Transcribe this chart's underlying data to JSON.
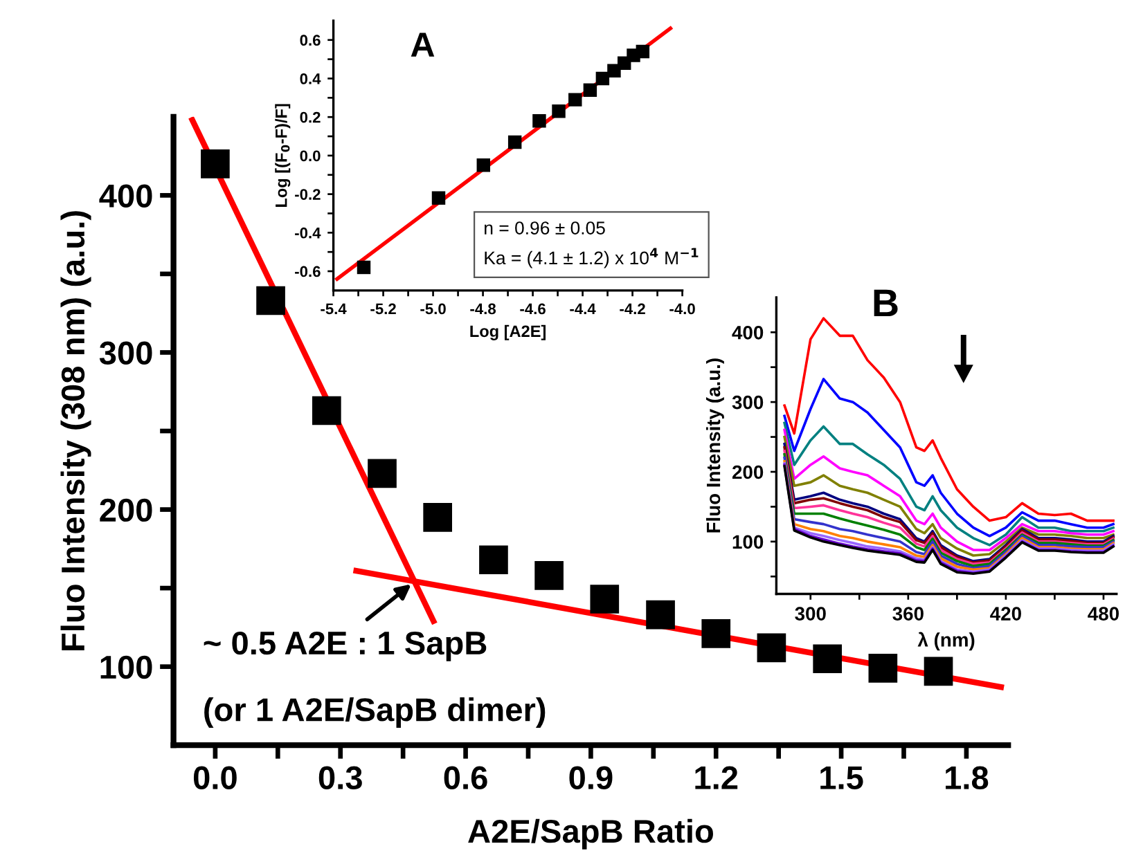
{
  "chart_data": [
    {
      "type": "scatter",
      "xlabel": "A2E/SapB Ratio",
      "ylabel": "Fluo Intensity (308 nm) (a.u.)",
      "xlim": [
        -0.1,
        1.9
      ],
      "ylim": [
        50,
        450
      ],
      "xticks": [
        {
          "value": 0,
          "label": "0.0"
        },
        {
          "value": 0.15,
          "label": null
        },
        0.3,
        {
          "value": 0.45,
          "label": null
        },
        0.6,
        {
          "value": 0.75,
          "label": null
        },
        0.9,
        {
          "value": 1.05,
          "label": null
        },
        1.2,
        {
          "value": 1.35,
          "label": null
        },
        1.5,
        {
          "value": 1.65,
          "label": null
        },
        1.8
      ],
      "yticks": [
        100,
        {
          "value": 150,
          "label": null
        },
        200,
        {
          "value": 250,
          "label": null
        },
        300,
        {
          "value": 350,
          "label": null
        },
        400
      ],
      "grid": false,
      "legend": false,
      "series": [
        {
          "type": "scatter",
          "marker": "square",
          "color": "#000000",
          "x": [
            0.0,
            0.133,
            0.267,
            0.4,
            0.533,
            0.667,
            0.8,
            0.933,
            1.067,
            1.2,
            1.333,
            1.467,
            1.6,
            1.733
          ],
          "values": [
            420,
            333,
            263,
            223,
            195,
            168,
            158,
            143,
            133,
            121,
            112,
            105,
            99,
            97
          ]
        },
        {
          "type": "line",
          "line_style": "solid",
          "color": "#ff0000",
          "x": [
            -0.055,
            0.523
          ],
          "values": [
            448,
            129
          ]
        },
        {
          "type": "line",
          "line_style": "solid",
          "color": "#ff0000",
          "x": [
            0.338,
            1.883
          ],
          "values": [
            161,
            87
          ]
        }
      ],
      "annotations": [
        {
          "text": "~ 0.5 A2E : 1 SapB",
          "x": 0.477,
          "y": 154
        },
        "(or 1 A2E/SapB dimer)"
      ]
    },
    {
      "type": "scatter",
      "title": "A",
      "xlabel": "Log [A2E]",
      "ylabel": "Log [(F$_{0}$-F)/F]",
      "xlim": [
        -5.4,
        -4.0
      ],
      "ylim": [
        -0.7,
        0.7
      ],
      "xticks": [
        -5.4,
        {
          "value": -5.3,
          "label": null
        },
        -5.2,
        {
          "value": -5.1,
          "label": null
        },
        {
          "value": -5,
          "label": "-5.0"
        },
        {
          "value": -4.9,
          "label": null
        },
        -4.8,
        {
          "value": -4.7,
          "label": null
        },
        -4.6,
        {
          "value": -4.5,
          "label": null
        },
        -4.4,
        {
          "value": -4.3,
          "label": null
        },
        -4.2,
        {
          "value": -4.1,
          "label": null
        },
        {
          "value": -4,
          "label": "-4.0"
        }
      ],
      "yticks": [
        -0.6,
        {
          "value": -0.5,
          "label": null
        },
        -0.4,
        {
          "value": -0.3,
          "label": null
        },
        -0.2,
        {
          "value": -0.1,
          "label": null
        },
        {
          "value": 0,
          "label": "0.0"
        },
        {
          "value": 0.1,
          "label": null
        },
        0.2,
        {
          "value": 0.3,
          "label": null
        },
        0.4,
        {
          "value": 0.5,
          "label": null
        },
        0.6
      ],
      "grid": false,
      "legend": false,
      "series": [
        {
          "type": "scatter",
          "marker": "square",
          "color": "#000000",
          "x": [
            -5.278,
            -4.978,
            -4.798,
            -4.672,
            -4.574,
            -4.496,
            -4.43,
            -4.37,
            -4.32,
            -4.274,
            -4.233,
            -4.196,
            -4.159
          ],
          "values": [
            -0.58,
            -0.22,
            -0.05,
            0.07,
            0.18,
            0.23,
            0.29,
            0.34,
            0.4,
            0.44,
            0.48,
            0.52,
            0.54
          ]
        },
        {
          "type": "line",
          "line_style": "solid",
          "color": "#ff0000",
          "x": [
            -5.385,
            -4.048
          ],
          "values": [
            -0.64,
            0.66
          ]
        }
      ],
      "annotations": [
        "n = 0.96 ± 0.05",
        "Ka = (4.1 ± 1.2) x 10$^{4}$ M$^{−1}$"
      ]
    },
    {
      "type": "line",
      "title": "B",
      "xlabel": "λ (nm)",
      "ylabel": "Fluo Intensity (a.u.)",
      "xlim": [
        279,
        488
      ],
      "ylim": [
        25,
        450
      ],
      "xticks": [
        300,
        {
          "value": 330,
          "label": null
        },
        360,
        {
          "value": 390,
          "label": null
        },
        420,
        {
          "value": 450,
          "label": null
        },
        480
      ],
      "yticks": [
        {
          "value": 50,
          "label": null
        },
        100,
        {
          "value": 150,
          "label": null
        },
        200,
        {
          "value": 250,
          "label": null
        },
        300,
        {
          "value": 350,
          "label": null
        },
        400
      ],
      "grid": false,
      "legend": false,
      "line_style": "solid",
      "x": [
        284,
        290,
        300,
        308,
        318,
        326,
        335,
        345,
        355,
        365,
        370,
        375,
        380,
        390,
        400,
        410,
        420,
        430,
        440,
        450,
        460,
        470,
        480,
        486
      ],
      "series": [
        {
          "color": "#ff0000",
          "values": [
            295,
            255,
            390,
            420,
            395,
            395,
            360,
            335,
            300,
            235,
            230,
            245,
            220,
            175,
            150,
            130,
            135,
            155,
            140,
            138,
            140,
            130,
            130,
            130
          ]
        },
        {
          "color": "#0000ff",
          "values": [
            280,
            230,
            290,
            333,
            305,
            300,
            285,
            260,
            235,
            185,
            180,
            195,
            170,
            140,
            120,
            108,
            120,
            142,
            130,
            130,
            125,
            120,
            120,
            125
          ]
        },
        {
          "color": "#008080",
          "values": [
            270,
            210,
            245,
            265,
            240,
            240,
            225,
            210,
            190,
            150,
            145,
            165,
            145,
            120,
            105,
            95,
            110,
            135,
            120,
            120,
            115,
            115,
            115,
            120
          ]
        },
        {
          "color": "#ff00ff",
          "values": [
            260,
            190,
            210,
            222,
            205,
            200,
            195,
            180,
            165,
            130,
            125,
            140,
            120,
            100,
            88,
            88,
            105,
            125,
            115,
            115,
            112,
            110,
            110,
            115
          ]
        },
        {
          "color": "#808000",
          "values": [
            250,
            180,
            185,
            195,
            180,
            175,
            170,
            160,
            150,
            118,
            112,
            125,
            105,
            90,
            80,
            82,
            100,
            120,
            110,
            110,
            108,
            105,
            105,
            110
          ]
        },
        {
          "color": "#000080",
          "values": [
            240,
            160,
            165,
            170,
            160,
            155,
            150,
            140,
            132,
            105,
            100,
            115,
            95,
            80,
            72,
            75,
            95,
            118,
            105,
            105,
            103,
            100,
            100,
            108
          ]
        },
        {
          "color": "#800000",
          "values": [
            235,
            155,
            160,
            162,
            155,
            150,
            145,
            135,
            128,
            102,
            98,
            112,
            92,
            78,
            70,
            73,
            93,
            116,
            103,
            103,
            101,
            98,
            98,
            106
          ]
        },
        {
          "color": "#ff3399",
          "values": [
            230,
            148,
            150,
            152,
            145,
            140,
            135,
            127,
            120,
            97,
            93,
            108,
            88,
            75,
            68,
            70,
            90,
            113,
            100,
            100,
            98,
            96,
            96,
            104
          ]
        },
        {
          "color": "#008000",
          "values": [
            225,
            140,
            140,
            140,
            133,
            128,
            123,
            117,
            110,
            92,
            88,
            104,
            84,
            72,
            65,
            68,
            88,
            110,
            98,
            98,
            96,
            94,
            94,
            102
          ]
        },
        {
          "color": "#3333cc",
          "values": [
            220,
            132,
            128,
            125,
            118,
            115,
            110,
            105,
            100,
            85,
            82,
            100,
            80,
            68,
            62,
            65,
            85,
            108,
            95,
            95,
            93,
            92,
            92,
            100
          ]
        },
        {
          "color": "#ff8000",
          "values": [
            215,
            125,
            118,
            115,
            108,
            105,
            100,
            96,
            92,
            80,
            78,
            95,
            76,
            64,
            60,
            62,
            82,
            105,
            92,
            92,
            90,
            89,
            89,
            98
          ]
        },
        {
          "color": "#9966ff",
          "values": [
            212,
            120,
            112,
            108,
            102,
            98,
            93,
            90,
            86,
            76,
            74,
            92,
            72,
            60,
            57,
            60,
            80,
            102,
            90,
            90,
            88,
            87,
            87,
            96
          ]
        },
        {
          "color": "#6600cc",
          "values": [
            210,
            118,
            108,
            103,
            97,
            93,
            89,
            86,
            83,
            73,
            72,
            90,
            70,
            58,
            55,
            58,
            78,
            100,
            88,
            88,
            86,
            85,
            85,
            94
          ]
        },
        {
          "color": "#000000",
          "values": [
            208,
            116,
            106,
            100,
            95,
            91,
            87,
            84,
            81,
            71,
            70,
            88,
            68,
            56,
            54,
            57,
            77,
            99,
            87,
            87,
            85,
            84,
            84,
            93
          ]
        }
      ]
    }
  ]
}
